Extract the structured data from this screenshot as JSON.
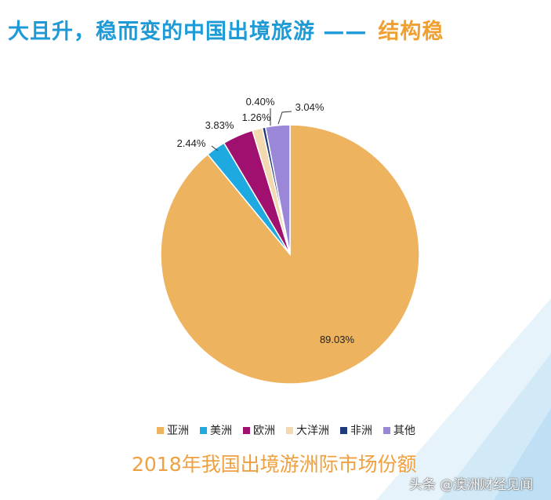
{
  "title": {
    "main": "大且升，稳而变的中国出境旅游 ——",
    "accent": "结构稳"
  },
  "colors": {
    "title_blue": "#1E9BD7",
    "title_orange": "#F0A030"
  },
  "chart_data": {
    "type": "pie",
    "title": "2018年我国出境游洲际市场份额",
    "start": "top",
    "direction": "clockwise",
    "legend_position": "bottom",
    "categories": [
      "亚洲",
      "美洲",
      "欧洲",
      "大洋洲",
      "非洲",
      "其他"
    ],
    "values": [
      89.03,
      2.44,
      3.83,
      1.26,
      0.4,
      3.04
    ],
    "labels": [
      "89.03%",
      "2.44%",
      "3.83%",
      "1.26%",
      "0.40%",
      "3.04%"
    ],
    "colors": [
      "#EDB35E",
      "#1FA9E1",
      "#A0106E",
      "#F2D9B0",
      "#1F3A7A",
      "#9B87D8"
    ]
  },
  "watermark": "头条 @澳洲财经见闻"
}
